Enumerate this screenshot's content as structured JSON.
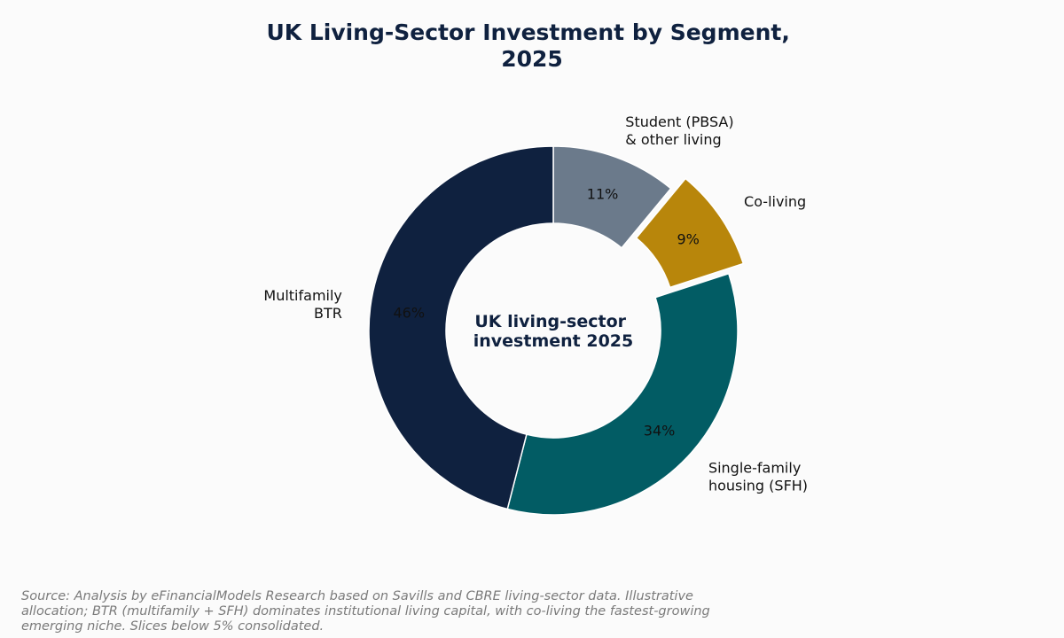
{
  "chart_data": {
    "type": "pie",
    "title": "UK Living-Sector Investment by Segment, 2025",
    "center_label": "UK living-sector investment 2025",
    "slices": [
      {
        "label": "Student (PBSA) & other living",
        "value": 11,
        "pct_label": "11%",
        "color": "#6b7a8b",
        "exploded": false
      },
      {
        "label": "Co-living",
        "value": 9,
        "pct_label": "9%",
        "color": "#b8860b",
        "exploded": true
      },
      {
        "label": "Single-family housing (SFH)",
        "value": 34,
        "pct_label": "34%",
        "color": "#025c64",
        "exploded": false
      },
      {
        "label": "Multifamily BTR",
        "value": 46,
        "pct_label": "46%",
        "color": "#0f213f",
        "exploded": false
      }
    ]
  },
  "footnote": "Source: Analysis by eFinancialModels Research based on Savills and CBRE living-sector data. Illustrative allocation; BTR (multifamily + SFH) dominates institutional living capital, with co-living the fastest-growing emerging niche. Slices below 5% consolidated."
}
